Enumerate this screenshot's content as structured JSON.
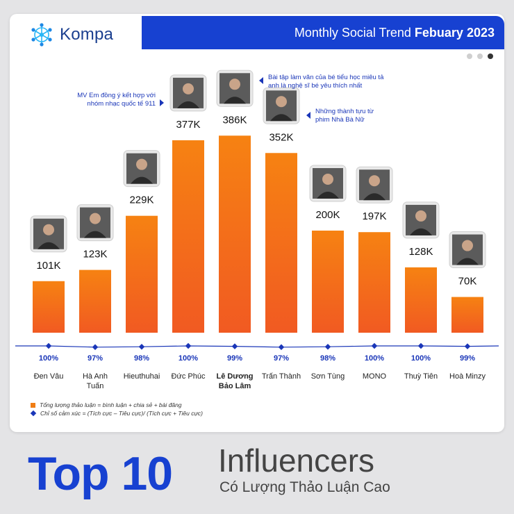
{
  "header": {
    "logo_text": "Kompa",
    "title_prefix": "Monthly Social Trend ",
    "title_bold": "Febuary 2023",
    "page_dots": 3,
    "active_dot": 2
  },
  "colors": {
    "accent": "#1741d1",
    "bar_top": "#f68212",
    "bar_bottom": "#f15a22",
    "line": "#1a36b8"
  },
  "chart_data": {
    "type": "bar",
    "categories": [
      "Đen Vâu",
      "Hà Anh Tuấn",
      "Hieuthuhai",
      "Đức Phúc",
      "Lê Dương Bảo Lâm",
      "Trấn Thành",
      "Sơn Tùng",
      "MONO",
      "Thuỳ Tiên",
      "Hoà Minzy"
    ],
    "highlight_index": 4,
    "series": [
      {
        "name": "Tổng lượng thảo luận = bình luận + chia sẻ + bài đăng",
        "values": [
          101,
          123,
          229,
          377,
          386,
          352,
          200,
          197,
          128,
          70
        ],
        "labels": [
          "101K",
          "123K",
          "229K",
          "377K",
          "386K",
          "352K",
          "200K",
          "197K",
          "128K",
          "70K"
        ]
      },
      {
        "name": "Chỉ số cảm xúc = (Tích cực – Tiêu cực)/ (Tích cực + Tiêu cực)",
        "values": [
          100,
          97,
          98,
          100,
          99,
          97,
          98,
          100,
          100,
          99
        ],
        "labels": [
          "100%",
          "97%",
          "98%",
          "100%",
          "99%",
          "97%",
          "98%",
          "100%",
          "100%",
          "99%"
        ]
      }
    ],
    "annotations": [
      {
        "index": 3,
        "text": "MV Em đồng ý kết hợp với nhóm nhạc quốc tế 911"
      },
      {
        "index": 4,
        "text": "Bài tập làm văn của bé tiểu học miêu tả anh là nghệ sĩ bé yêu thích nhất"
      },
      {
        "index": 5,
        "text": "Những thành tựu từ phim Nhà Bà Nữ"
      }
    ]
  },
  "footer": {
    "big": "Top 10",
    "title": "Influencers",
    "subtitle": "Có Lượng Thảo Luận Cao"
  }
}
